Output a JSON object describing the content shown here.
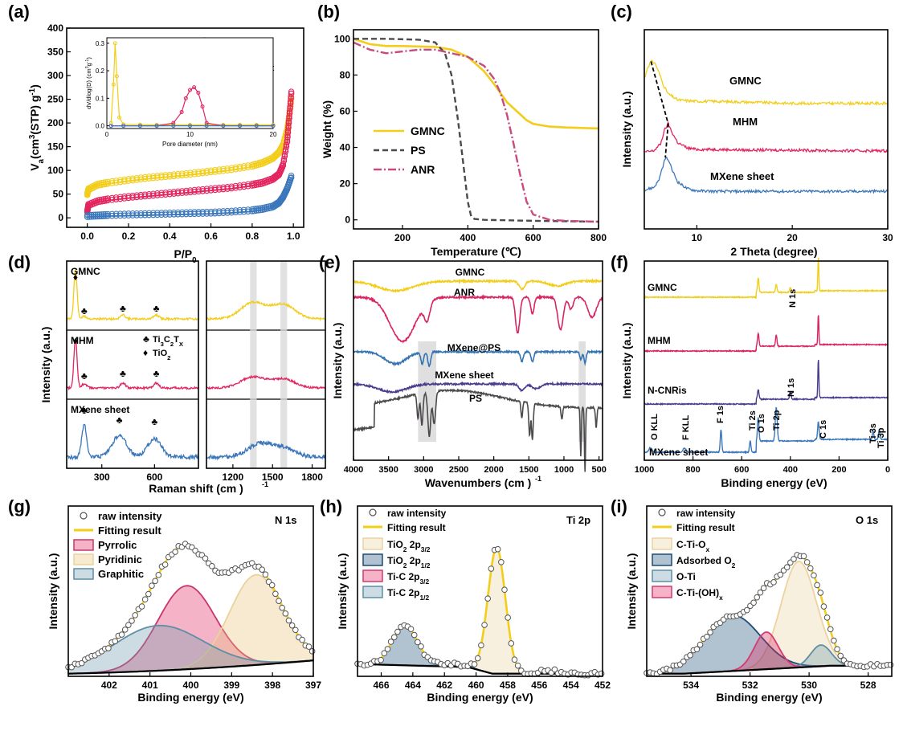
{
  "colors": {
    "gmnc": "#f2cd1a",
    "mhm": "#e3245f",
    "mxene": "#3b77bb",
    "ps": "#4d4a4d",
    "anr": "#c94a7e",
    "mxeneps": "#3474b2",
    "cnris": "#4a3c8c",
    "bg": "#000000"
  },
  "chart_data": [
    {
      "panel": "(a)",
      "type": "scatter",
      "xlabel": "P/P",
      "xlabel_sub": "0",
      "ylabel": "V (cm (STP) g )",
      "ylabel_parts": [
        "V",
        "a",
        "(cm",
        "3",
        "(STP) g",
        "-1",
        ")"
      ],
      "xlim": [
        -0.1,
        1.05
      ],
      "ylim": [
        -20,
        400
      ],
      "xticks": [
        "0.0",
        "0.2",
        "0.4",
        "0.6",
        "0.8",
        "1.0"
      ],
      "xtick_values": [
        0,
        0.2,
        0.4,
        0.6,
        0.8,
        1.0
      ],
      "yticks": [
        "0",
        "50",
        "100",
        "150",
        "200",
        "250",
        "300",
        "350",
        "400"
      ],
      "ytick_values": [
        0,
        50,
        100,
        150,
        200,
        250,
        300,
        350,
        400
      ],
      "series": [
        {
          "name": "GMNC",
          "x": [
            0.0,
            0.005,
            0.05,
            0.1,
            0.2,
            0.3,
            0.4,
            0.5,
            0.6,
            0.7,
            0.8,
            0.85,
            0.9,
            0.93,
            0.95,
            0.97,
            0.98,
            0.99
          ],
          "y": [
            48,
            58,
            68,
            72,
            78,
            83,
            87,
            91,
            96,
            101,
            108,
            114,
            124,
            136,
            152,
            185,
            215,
            250
          ]
        },
        {
          "name": "MHM",
          "x": [
            0.0,
            0.005,
            0.05,
            0.1,
            0.2,
            0.3,
            0.4,
            0.5,
            0.6,
            0.7,
            0.8,
            0.85,
            0.9,
            0.93,
            0.95,
            0.97,
            0.98,
            0.99
          ],
          "y": [
            12,
            25,
            33,
            37,
            42,
            46,
            50,
            54,
            58,
            62,
            68,
            72,
            80,
            90,
            110,
            160,
            210,
            262
          ]
        },
        {
          "name": "MXene sheet",
          "x": [
            0.0,
            0.05,
            0.1,
            0.2,
            0.3,
            0.4,
            0.5,
            0.6,
            0.7,
            0.8,
            0.85,
            0.9,
            0.93,
            0.95,
            0.97,
            0.99
          ],
          "y": [
            2,
            3,
            4,
            5,
            6,
            7,
            8,
            9,
            11,
            14,
            17,
            22,
            30,
            42,
            60,
            85
          ]
        }
      ],
      "inset": {
        "type": "line",
        "xlabel": "Pore diameter (nm)",
        "ylabel": "dV/dlog(D) (cm g )",
        "ylabel_parts": [
          "dV/dlog(D) (cm",
          "3",
          "g",
          "-1",
          ")"
        ],
        "xlim": [
          0,
          20
        ],
        "ylim": [
          -0.01,
          0.32
        ],
        "xticks": [
          "0",
          "10",
          "20"
        ],
        "xtick_values": [
          0,
          10,
          20
        ],
        "yticks": [
          "0.0",
          "0.1",
          "0.2",
          "0.3"
        ],
        "ytick_values": [
          0,
          0.1,
          0.2,
          0.3
        ],
        "series": [
          {
            "name": "GMNC",
            "x": [
              0.5,
              0.8,
              1.0,
              1.2,
              1.5,
              2.0,
              4,
              6,
              8,
              10,
              12,
              14,
              16,
              18,
              20
            ],
            "y": [
              0.01,
              0.15,
              0.3,
              0.18,
              0.03,
              0.005,
              0.004,
              0.003,
              0.003,
              0.003,
              0.003,
              0.003,
              0.003,
              0.003,
              0.003
            ]
          },
          {
            "name": "MHM",
            "x": [
              0.5,
              2,
              4,
              6,
              8,
              9,
              9.5,
              10,
              10.5,
              11,
              11.5,
              12,
              14,
              16,
              18,
              20
            ],
            "y": [
              0,
              0,
              0,
              0,
              0.01,
              0.05,
              0.1,
              0.13,
              0.14,
              0.12,
              0.07,
              0.01,
              0,
              0,
              0,
              0
            ]
          },
          {
            "name": "MXene sheet",
            "x": [
              0.5,
              2,
              4,
              6,
              8,
              10,
              12,
              14,
              16,
              18,
              20
            ],
            "y": [
              0,
              0,
              0,
              0,
              0,
              0,
              0,
              0,
              0,
              0,
              0
            ]
          }
        ]
      }
    },
    {
      "panel": "(b)",
      "type": "line",
      "xlabel": "Temperature (℃)",
      "ylabel": "Weight (%)",
      "xlim": [
        50,
        800
      ],
      "ylim": [
        -5,
        105
      ],
      "xticks": [
        "200",
        "400",
        "600",
        "800"
      ],
      "xtick_values": [
        200,
        400,
        600,
        800
      ],
      "yticks": [
        "0",
        "20",
        "40",
        "60",
        "80",
        "100"
      ],
      "ytick_values": [
        0,
        20,
        40,
        60,
        80,
        100
      ],
      "series": [
        {
          "name": "GMNC",
          "x": [
            50,
            100,
            150,
            200,
            300,
            350,
            400,
            450,
            480,
            500,
            520,
            550,
            580,
            600,
            650,
            700,
            800
          ],
          "y": [
            100,
            97,
            96,
            96,
            95.5,
            94,
            90,
            82,
            75,
            70,
            65,
            60,
            55,
            53,
            51.5,
            51,
            50.5
          ]
        },
        {
          "name": "PS",
          "x": [
            50,
            150,
            250,
            300,
            330,
            350,
            370,
            380,
            390,
            400,
            410,
            420,
            450,
            600,
            800
          ],
          "y": [
            100,
            100,
            99.5,
            98,
            92,
            80,
            55,
            40,
            25,
            10,
            2,
            0.5,
            0,
            -0.5,
            -1
          ]
        },
        {
          "name": "ANR",
          "x": [
            50,
            100,
            150,
            200,
            250,
            300,
            350,
            400,
            450,
            480,
            500,
            520,
            540,
            560,
            580,
            600,
            650,
            700,
            800
          ],
          "y": [
            98,
            94,
            92,
            93,
            94,
            94,
            92,
            90,
            85,
            78,
            70,
            58,
            42,
            25,
            10,
            3,
            0,
            -0.5,
            -1
          ]
        }
      ]
    },
    {
      "panel": "(c)",
      "type": "line",
      "xlabel": "2 Theta (degree)",
      "ylabel": "Intensity (a.u.)",
      "xlim": [
        4.5,
        30
      ],
      "xticks": [
        "10",
        "20",
        "30"
      ],
      "xtick_values": [
        10,
        20,
        30
      ],
      "series": [
        {
          "name": "GMNC",
          "x": [
            4.5,
            4.8,
            5.2,
            5.6,
            6.0,
            6.5,
            7,
            8,
            10,
            12,
            15,
            20,
            25,
            30
          ],
          "y": [
            170,
            190,
            200,
            198,
            185,
            165,
            152,
            143,
            141,
            141,
            140,
            138,
            138,
            138
          ]
        },
        {
          "name": "MHM",
          "x": [
            4.5,
            5.5,
            6.2,
            6.6,
            7.0,
            7.4,
            8,
            9,
            10,
            12,
            15,
            20,
            25,
            30
          ],
          "y": [
            66,
            68,
            78,
            98,
            108,
            95,
            80,
            72,
            70,
            70,
            69,
            69,
            68,
            68
          ]
        },
        {
          "name": "MXene sheet",
          "x": [
            4.5,
            5.5,
            6.0,
            6.4,
            6.7,
            7.0,
            7.4,
            8,
            9,
            10,
            12,
            15,
            20,
            25,
            30
          ],
          "y": [
            10,
            14,
            24,
            42,
            58,
            55,
            40,
            22,
            12,
            9,
            8,
            8,
            8,
            8,
            8
          ]
        }
      ],
      "labels": [
        "GMNC",
        "MHM",
        "MXene sheet"
      ]
    },
    {
      "panel": "(d)",
      "type": "line",
      "xlabel": "Raman shift (cm )",
      "xlabel_sup": "-1",
      "ylabel": "Intensity (a.u.)",
      "left_xlim": [
        100,
        850
      ],
      "left_xticks": [
        "300",
        "600"
      ],
      "left_xtick_values": [
        300,
        600
      ],
      "right_xlim": [
        1000,
        1900
      ],
      "right_xticks": [
        "1200",
        "1500",
        "1800"
      ],
      "right_xtick_values": [
        1200,
        1500,
        1800
      ],
      "series": [
        {
          "name": "GMNC",
          "peaks_left": [
            [
              150,
              1.0
            ],
            [
              200,
              0.05
            ],
            [
              420,
              0.08
            ],
            [
              610,
              0.08
            ]
          ],
          "peaks_right": [
            [
              1350,
              0.45
            ],
            [
              1580,
              0.4
            ]
          ]
        },
        {
          "name": "MHM",
          "peaks_left": [
            [
              150,
              1.0
            ],
            [
              200,
              0.08
            ],
            [
              420,
              0.1
            ],
            [
              610,
              0.1
            ]
          ],
          "peaks_right": [
            [
              1350,
              0.3
            ],
            [
              1580,
              0.25
            ]
          ]
        },
        {
          "name": "MXene sheet",
          "peaks_left": [
            [
              200,
              0.9
            ],
            [
              400,
              0.6
            ],
            [
              600,
              0.5
            ]
          ],
          "peaks_right": [
            [
              1400,
              0.35
            ],
            [
              1580,
              0.25
            ]
          ]
        }
      ],
      "legend": {
        "club": "Ti C T ",
        "club_parts": [
          "Ti",
          "3",
          "C",
          "2",
          "T",
          "X"
        ],
        "diamond": "TiO",
        "diamond_sub": "2"
      },
      "symbols": {
        "club": "♣",
        "diamond": "♦"
      }
    },
    {
      "panel": "(e)",
      "type": "line",
      "xlabel": "Wavenumbers (cm )",
      "xlabel_sup": "-1",
      "ylabel": "Intensity (a.u.)",
      "xlim": [
        4000,
        450
      ],
      "xticks": [
        "4000",
        "3500",
        "3000",
        "2500",
        "2000",
        "1500",
        "1000",
        "500"
      ],
      "xtick_values": [
        4000,
        3500,
        3000,
        2500,
        2000,
        1500,
        1000,
        500
      ],
      "series": [
        {
          "name": "GMNC"
        },
        {
          "name": "ANR"
        },
        {
          "name": "MXene@PS"
        },
        {
          "name": "MXene sheet"
        },
        {
          "name": "PS"
        }
      ]
    },
    {
      "panel": "(f)",
      "type": "line",
      "xlabel": "Binding energy (eV)",
      "ylabel": "Intensity (a.u.)",
      "xlim": [
        1000,
        0
      ],
      "xticks": [
        "1000",
        "800",
        "600",
        "400",
        "200",
        "0"
      ],
      "xtick_values": [
        1000,
        800,
        600,
        400,
        200,
        0
      ],
      "series": [
        {
          "name": "GMNC"
        },
        {
          "name": "MHM"
        },
        {
          "name": "N-CNRis"
        },
        {
          "name": "MXene sheet"
        }
      ],
      "annotations": [
        "O KLL",
        "F KLL",
        "F 1s",
        "Ti 2s",
        "O 1s",
        "Ti 2p",
        "N 1s",
        "C 1s",
        "Ti 3s",
        "Ti 3p"
      ]
    },
    {
      "panel": "(g)",
      "type": "line",
      "title": "N 1s",
      "xlabel": "Binding energy (eV)",
      "ylabel": "Intensity (a.u.)",
      "xlim": [
        403,
        397
      ],
      "xticks": [
        "402",
        "401",
        "400",
        "399",
        "398",
        "397"
      ],
      "xtick_values": [
        402,
        401,
        400,
        399,
        398,
        397
      ],
      "legend": [
        "raw intensity",
        "Fitting result",
        "Pyrrolic",
        "Pyridinic",
        "Graphitic"
      ],
      "components": [
        {
          "name": "Pyrrolic",
          "center": 400.1,
          "height": 0.63,
          "sigma": 0.7
        },
        {
          "name": "Pyridinic",
          "center": 398.4,
          "height": 0.68,
          "sigma": 0.65
        },
        {
          "name": "Graphitic",
          "center": 400.8,
          "height": 0.34,
          "sigma": 1.1
        }
      ]
    },
    {
      "panel": "(h)",
      "type": "line",
      "title": "Ti 2p",
      "xlabel": "Binding energy (eV)",
      "ylabel": "Intensity (a.u.)",
      "xlim": [
        467.5,
        452
      ],
      "xticks": [
        "466",
        "464",
        "462",
        "460",
        "458",
        "456",
        "454",
        "452"
      ],
      "xtick_values": [
        466,
        464,
        462,
        460,
        458,
        456,
        454,
        452
      ],
      "legend": [
        "raw intensity",
        "Fitting result",
        "TiO 2p",
        "TiO 2p",
        "Ti-C 2p",
        "Ti-C 2p"
      ],
      "legend_parts": [
        {
          "a": "TiO",
          "a_sub": "2",
          "b": " 2p",
          "b_sub": "3/2"
        },
        {
          "a": "TiO",
          "a_sub": "2",
          "b": " 2p",
          "b_sub": "1/2"
        },
        {
          "a": "Ti-C 2p",
          "a_sub": "",
          "b": "",
          "b_sub": "3/2"
        },
        {
          "a": "Ti-C 2p",
          "a_sub": "",
          "b": "",
          "b_sub": "1/2"
        }
      ],
      "components": [
        {
          "name": "TiO2 2p3/2",
          "center": 458.7,
          "height": 0.95,
          "sigma": 0.55
        },
        {
          "name": "TiO2 2p1/2",
          "center": 464.5,
          "height": 0.3,
          "sigma": 0.8
        },
        {
          "name": "Ti-C 2p3/2",
          "center": 455.5,
          "height": 0.02,
          "sigma": 0.8
        },
        {
          "name": "Ti-C 2p1/2",
          "center": 461.5,
          "height": 0.02,
          "sigma": 0.8
        }
      ]
    },
    {
      "panel": "(i)",
      "type": "line",
      "title": "O 1s",
      "xlabel": "Binding energy (eV)",
      "ylabel": "Intensity (a.u.)",
      "xlim": [
        535.5,
        527.2
      ],
      "xticks": [
        "534",
        "532",
        "530",
        "528"
      ],
      "xtick_values": [
        534,
        532,
        530,
        528
      ],
      "legend": [
        "raw intensity",
        "Fitting result",
        "C-Ti-O",
        "Adsorbed O",
        "O-Ti",
        "C-Ti-(OH)"
      ],
      "legend_parts": [
        {
          "a": "C-Ti-O",
          "a_sub": "x"
        },
        {
          "a": "Adsorbed O",
          "a_sub": "2"
        },
        {
          "a": "O-Ti",
          "a_sub": ""
        },
        {
          "a": "C-Ti-(OH)",
          "a_sub": "x"
        }
      ],
      "components": [
        {
          "name": "C-Ti-Ox",
          "center": 530.35,
          "height": 0.8,
          "sigma": 0.6
        },
        {
          "name": "Adsorbed O2",
          "center": 532.6,
          "height": 0.42,
          "sigma": 0.95
        },
        {
          "name": "O-Ti",
          "center": 529.6,
          "height": 0.16,
          "sigma": 0.35
        },
        {
          "name": "C-Ti-(OH)x",
          "center": 531.45,
          "height": 0.28,
          "sigma": 0.4
        }
      ]
    }
  ]
}
